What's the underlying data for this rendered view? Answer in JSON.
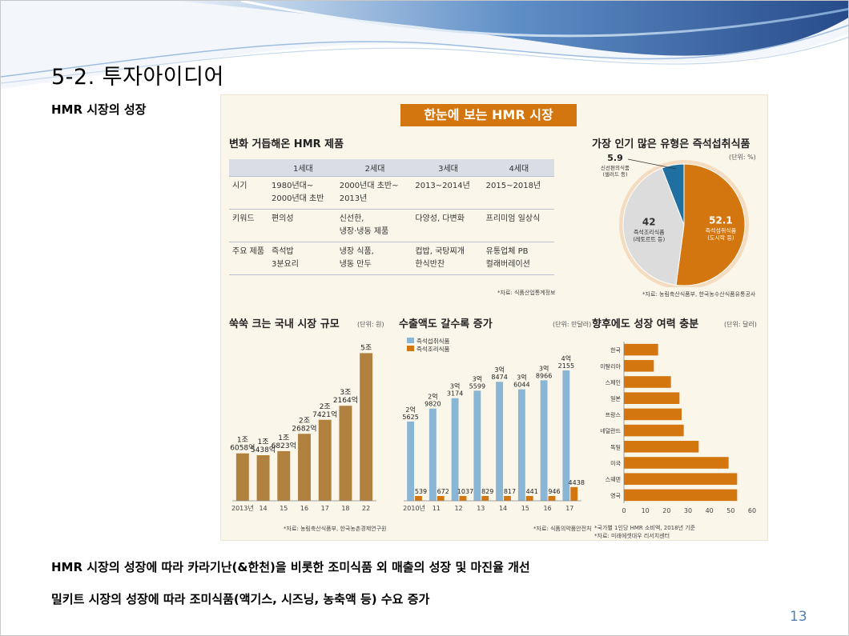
{
  "slide": {
    "title": "5-2. 투자아이디어",
    "subtitle": "HMR 시장의 성장",
    "bullets": [
      "HMR 시장의 성장에 따라 카라기난(&한천)을 비롯한 조미식품 외 매출의 성장 및 마진율 개선",
      "밀키트 시장의 성장에 따라 조미식품(액기스, 시즈닝, 농축액 등) 수요 증가"
    ],
    "page_number": "13"
  },
  "infographic": {
    "title": "한눈에 보는 HMR 시장",
    "accent": "#d4760f",
    "table_section": {
      "title": "변화 거듭해온 HMR 제품",
      "headers": [
        "",
        "1세대",
        "2세대",
        "3세대",
        "4세대"
      ],
      "rows": [
        {
          "label": "시기",
          "cells": [
            "1980년대~\n2000년대 초반",
            "2000년대 초반~\n2013년",
            "2013~2014년",
            "2015~2018년"
          ]
        },
        {
          "label": "키워드",
          "cells": [
            "편의성",
            "신선한,\n냉장·냉동 제품",
            "다양성, 다변화",
            "프리미엄 일상식"
          ]
        },
        {
          "label": "주요 제품",
          "cells": [
            "즉석밥\n3분요리",
            "냉장 식품,\n냉동 만두",
            "컵밥, 국탕찌개\n한식반찬",
            "유통업체 PB\n컬래버레이션"
          ]
        }
      ],
      "source": "*자료: 식품산업통계정보"
    },
    "pie_section": {
      "title": "가장 인기 많은 유형은 즉석섭취식품",
      "unit": "(단위: %)",
      "source": "*자료: 농림축산식품부, 한국농수산식품유통공사",
      "chart_data": {
        "type": "pie",
        "slices": [
          {
            "value": 52.1,
            "label": "즉석섭취식품",
            "sublabel": "(도시락 등)",
            "color": "#d4760f"
          },
          {
            "value": 42,
            "label": "즉석조리식품",
            "sublabel": "(레토르트 등)",
            "color": "#dcdcdc"
          },
          {
            "value": 5.9,
            "label": "신선편의식품",
            "sublabel": "(샐러드 등)",
            "color": "#1f6fa0"
          }
        ]
      }
    },
    "domestic_section": {
      "title": "쑥쑥 크는 국내 시장 규모",
      "unit": "(단위: 원)",
      "source": "*자료: 농림축산식품부, 한국농촌경제연구원",
      "chart_data": {
        "type": "bar",
        "categories": [
          "2013년",
          "14",
          "15",
          "16",
          "17",
          "18",
          "22"
        ],
        "values": [
          16058,
          15438,
          16823,
          22682,
          27421,
          32164,
          50000
        ],
        "labels": [
          [
            "1조",
            "6058억"
          ],
          [
            "1조",
            "5438억"
          ],
          [
            "1조",
            "6823억"
          ],
          [
            "2조",
            "2682억"
          ],
          [
            "2조",
            "7421억"
          ],
          [
            "3조",
            "2164억"
          ],
          [
            "5조"
          ]
        ],
        "color": "#b1813f",
        "ylim": [
          0,
          52000
        ]
      }
    },
    "export_section": {
      "title": "수출액도 갈수록 증가",
      "unit": "(단위: 만달러)",
      "source": "*자료: 식품의약품안전처",
      "chart_data": {
        "type": "bar",
        "categories": [
          "2010년",
          "11",
          "12",
          "13",
          "14",
          "15",
          "16",
          "17"
        ],
        "series": [
          {
            "name": "즉석섭취식품",
            "color": "#8ab6d6",
            "values": [
              25625,
              29820,
              33174,
              35599,
              38474,
              36044,
              38966,
              42155
            ],
            "labels": [
              [
                "2억",
                "5625"
              ],
              [
                "2억",
                "9820"
              ],
              [
                "3억",
                "3174"
              ],
              [
                "3억",
                "5599"
              ],
              [
                "3억",
                "8474"
              ],
              [
                "3억",
                "6044"
              ],
              [
                "3억",
                "8966"
              ],
              [
                "4억",
                "2155"
              ]
            ]
          },
          {
            "name": "즉석조리식품",
            "color": "#d4760f",
            "values": [
              539,
              672,
              1037,
              829,
              817,
              441,
              946,
              4438
            ],
            "labels": [
              [
                "539"
              ],
              [
                "672"
              ],
              [
                "1037"
              ],
              [
                "829"
              ],
              [
                "817"
              ],
              [
                "441"
              ],
              [
                "946"
              ],
              [
                "4438"
              ]
            ]
          }
        ],
        "ylim": [
          0,
          45000
        ]
      }
    },
    "future_section": {
      "title": "향후에도 성장 여력 충분",
      "unit": "(단위: 달러)",
      "source_lines": [
        "*국가별 1인당 HMR 소비액, 2018년 기준",
        "*자료: 미래에셋대우 리서치센터"
      ],
      "chart_data": {
        "type": "bar",
        "orientation": "horizontal",
        "categories": [
          "한국",
          "이탈리아",
          "스페인",
          "일본",
          "프랑스",
          "네덜란드",
          "독일",
          "미국",
          "스웨덴",
          "영국"
        ],
        "values": [
          16,
          14,
          22,
          26,
          27,
          28,
          35,
          49,
          53,
          53
        ],
        "xticks": [
          "0",
          "10",
          "20",
          "30",
          "40",
          "50",
          "60"
        ],
        "xlim": [
          0,
          60
        ],
        "color": "#d4760f"
      }
    }
  }
}
